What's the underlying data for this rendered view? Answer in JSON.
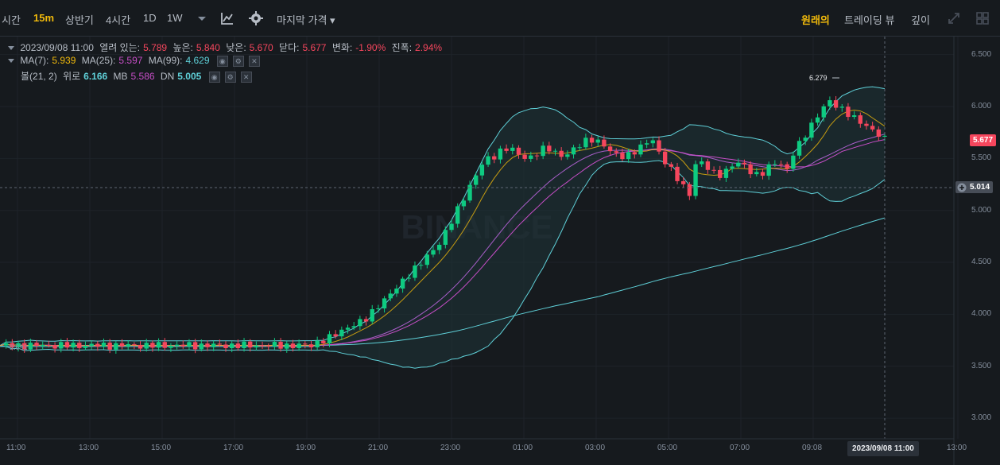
{
  "toolbar": {
    "intervals": [
      "시간",
      "15m",
      "상반기",
      "4시간",
      "1D",
      "1W"
    ],
    "active_interval": "15m",
    "price_type": "마지막 가격",
    "views": [
      "원래의",
      "트레이딩 뷰",
      "깊이"
    ],
    "active_view": "원래의"
  },
  "legend": {
    "ohlc": {
      "date": "2023/09/08 11:00",
      "open_label": "열려 있는:",
      "open": "5.789",
      "high_label": "높은:",
      "high": "5.840",
      "low_label": "낮은:",
      "low": "5.670",
      "close_label": "닫다:",
      "close": "5.677",
      "change_label": "변화:",
      "change": "-1.90%",
      "amp_label": "진폭:",
      "amp": "2.94%"
    },
    "ma": {
      "ma7_label": "MA(7):",
      "ma7": "5.939",
      "ma25_label": "MA(25):",
      "ma25": "5.597",
      "ma99_label": "MA(99):",
      "ma99": "4.629"
    },
    "boll": {
      "label": "볼(21, 2)",
      "up_label": "위로",
      "up": "6.166",
      "mb_label": "MB",
      "mb": "5.586",
      "dn_label": "DN",
      "dn": "5.005"
    }
  },
  "price_axis": [
    "6.500",
    "6.000",
    "5.500",
    "5.000",
    "4.500",
    "4.000",
    "3.500",
    "3.000"
  ],
  "time_axis": [
    "11:00",
    "13:00",
    "15:00",
    "17:00",
    "19:00",
    "21:00",
    "23:00",
    "01:00",
    "03:00",
    "05:00",
    "07:00",
    "09:08",
    "13:00"
  ],
  "current_price": "5.677",
  "crosshair_price": "5.014",
  "crosshair_time": "2023/09/08 11:00",
  "high_marker": "6.279",
  "low_marker": "3.691",
  "watermark": "BINANCE",
  "colors": {
    "up": "#0ecb81",
    "down": "#f6465d",
    "ma7": "#f0b90b",
    "ma25": "#c74ec7",
    "ma99": "#5fd0d8",
    "boll": "#5fd0d8"
  }
}
